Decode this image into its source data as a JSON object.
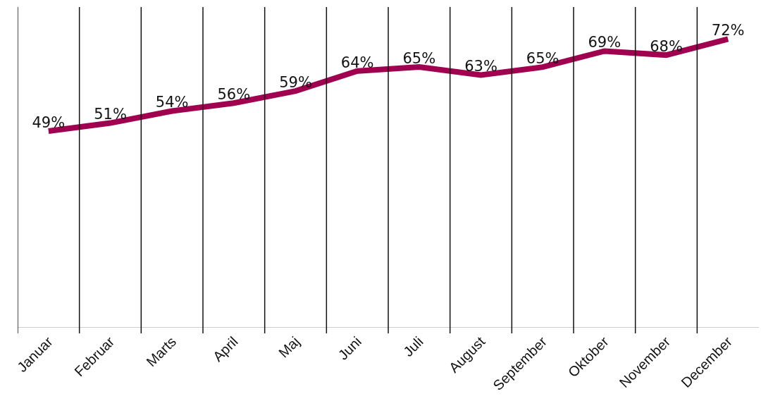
{
  "chart_data": {
    "type": "line",
    "categories": [
      "Januar",
      "Februar",
      "Marts",
      "April",
      "Maj",
      "Juni",
      "Juli",
      "August",
      "September",
      "Oktober",
      "November",
      "December"
    ],
    "series": [
      {
        "color": "#a0004f",
        "values": [
          49,
          51,
          54,
          56,
          59,
          64,
          65,
          63,
          65,
          69,
          68,
          72
        ],
        "value_labels": [
          "49%",
          "51%",
          "54%",
          "56%",
          "59%",
          "64%",
          "65%",
          "63%",
          "65%",
          "69%",
          "68%",
          "72%"
        ]
      }
    ],
    "ylim": [
      0,
      80
    ],
    "grid": "x",
    "tick_labels": "x",
    "marker": "none",
    "line_style": "solid",
    "legend": false
  }
}
